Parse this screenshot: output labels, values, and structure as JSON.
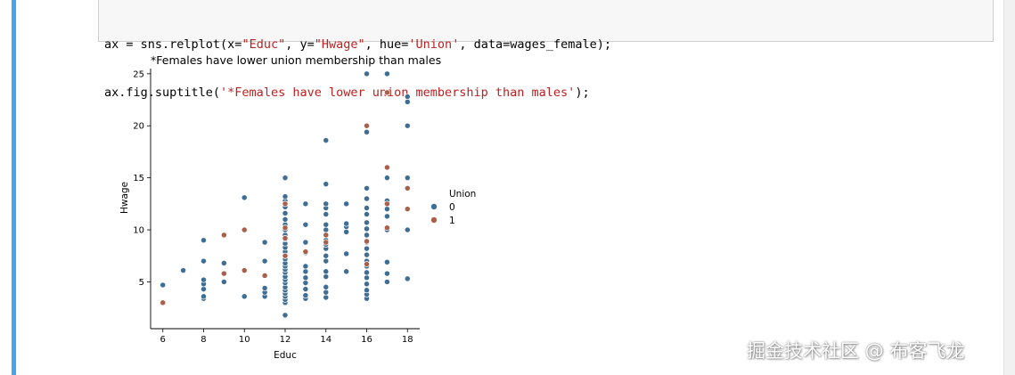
{
  "code_cell": {
    "line1": {
      "a": "ax = sns.relplot(x=",
      "b": "\"Educ\"",
      "c": ", y=",
      "d": "\"Hwage\"",
      "e": ", hue=",
      "f": "'Union'",
      "g": ", data=wages_female);"
    },
    "line2": {
      "a": "ax.fig.suptitle(",
      "b": "'*Females have lower union membership than males'",
      "c": ");"
    }
  },
  "colors": {
    "union_0": "#3f6e94",
    "union_1": "#a9604a",
    "cell_marker": "#42a5f5"
  },
  "watermark": "掘金技术社区 @ 布客飞龙",
  "chart_data": {
    "type": "scatter",
    "title": "*Females have lower union membership than males",
    "xlabel": "Educ",
    "ylabel": "Hwage",
    "xlim": [
      5.4,
      18.6
    ],
    "ylim": [
      0.5,
      25.5
    ],
    "xticks": [
      6,
      8,
      10,
      12,
      14,
      16,
      18
    ],
    "yticks": [
      5,
      10,
      15,
      20,
      25
    ],
    "grid": false,
    "legend": {
      "title": "Union",
      "placement": "center-right outside",
      "entries": [
        "0",
        "1"
      ]
    },
    "series": [
      {
        "name": "0",
        "points": [
          [
            6,
            4.7
          ],
          [
            7,
            6.1
          ],
          [
            8,
            3.4
          ],
          [
            8,
            3.6
          ],
          [
            8,
            4.3
          ],
          [
            8,
            4.8
          ],
          [
            8,
            5.2
          ],
          [
            8,
            7
          ],
          [
            8,
            9
          ],
          [
            9,
            5
          ],
          [
            9,
            5.8
          ],
          [
            9,
            6.8
          ],
          [
            10,
            3.6
          ],
          [
            10,
            6.1
          ],
          [
            10,
            13.1
          ],
          [
            11,
            3.6
          ],
          [
            11,
            4
          ],
          [
            11,
            4.4
          ],
          [
            11,
            7
          ],
          [
            11,
            8.8
          ],
          [
            12,
            1.8
          ],
          [
            12,
            3
          ],
          [
            12,
            3.3
          ],
          [
            12,
            3.6
          ],
          [
            12,
            3.9
          ],
          [
            12,
            4.2
          ],
          [
            12,
            4.5
          ],
          [
            12,
            4.9
          ],
          [
            12,
            5.2
          ],
          [
            12,
            5.5
          ],
          [
            12,
            5.9
          ],
          [
            12,
            6.2
          ],
          [
            12,
            6.5
          ],
          [
            12,
            6.8
          ],
          [
            12,
            7.2
          ],
          [
            12,
            7.5
          ],
          [
            12,
            7.9
          ],
          [
            12,
            8.3
          ],
          [
            12,
            8.7
          ],
          [
            12,
            9.1
          ],
          [
            12,
            9.5
          ],
          [
            12,
            10
          ],
          [
            12,
            10.5
          ],
          [
            12,
            11
          ],
          [
            12,
            11.6
          ],
          [
            12,
            12.2
          ],
          [
            12,
            12.8
          ],
          [
            12,
            13.2
          ],
          [
            12,
            15
          ],
          [
            13,
            3.4
          ],
          [
            13,
            3.7
          ],
          [
            13,
            4.3
          ],
          [
            13,
            4.9
          ],
          [
            13,
            5.4
          ],
          [
            13,
            6
          ],
          [
            13,
            6.5
          ],
          [
            13,
            7.8
          ],
          [
            13,
            8.8
          ],
          [
            13,
            10.5
          ],
          [
            13,
            12.5
          ],
          [
            14,
            3.5
          ],
          [
            14,
            4
          ],
          [
            14,
            4.5
          ],
          [
            14,
            5.5
          ],
          [
            14,
            6
          ],
          [
            14,
            7
          ],
          [
            14,
            7.5
          ],
          [
            14,
            8.2
          ],
          [
            14,
            8.6
          ],
          [
            14,
            9
          ],
          [
            14,
            10
          ],
          [
            14,
            10.5
          ],
          [
            14,
            11.5
          ],
          [
            14,
            12.1
          ],
          [
            14,
            12.5
          ],
          [
            14,
            14.4
          ],
          [
            14,
            18.6
          ],
          [
            15,
            6
          ],
          [
            15,
            7.7
          ],
          [
            15,
            9.8
          ],
          [
            15,
            10.3
          ],
          [
            15,
            10.6
          ],
          [
            15,
            12.5
          ],
          [
            16,
            3.4
          ],
          [
            16,
            3.8
          ],
          [
            16,
            4.2
          ],
          [
            16,
            4.8
          ],
          [
            16,
            5.4
          ],
          [
            16,
            5.9
          ],
          [
            16,
            6.5
          ],
          [
            16,
            7
          ],
          [
            16,
            7.6
          ],
          [
            16,
            8.2
          ],
          [
            16,
            8.8
          ],
          [
            16,
            9.5
          ],
          [
            16,
            10.1
          ],
          [
            16,
            10.7
          ],
          [
            16,
            11.5
          ],
          [
            16,
            12.1
          ],
          [
            16,
            13
          ],
          [
            16,
            14
          ],
          [
            16,
            19.4
          ],
          [
            16,
            25
          ],
          [
            17,
            5
          ],
          [
            17,
            5.8
          ],
          [
            17,
            6.9
          ],
          [
            17,
            10
          ],
          [
            17,
            11.3
          ],
          [
            17,
            12
          ],
          [
            17,
            12.8
          ],
          [
            17,
            15
          ],
          [
            17,
            25
          ],
          [
            18,
            5.3
          ],
          [
            18,
            10
          ],
          [
            18,
            15
          ],
          [
            18,
            20
          ],
          [
            18,
            22.3
          ],
          [
            18,
            22.8
          ]
        ]
      },
      {
        "name": "1",
        "points": [
          [
            6,
            3
          ],
          [
            9,
            5.8
          ],
          [
            9,
            9.5
          ],
          [
            10,
            6.1
          ],
          [
            10,
            10
          ],
          [
            11,
            5.6
          ],
          [
            12,
            7.5
          ],
          [
            12,
            9.2
          ],
          [
            12,
            10.2
          ],
          [
            12,
            12.5
          ],
          [
            13,
            7.9
          ],
          [
            14,
            8.8
          ],
          [
            14,
            9.5
          ],
          [
            16,
            6.7
          ],
          [
            16,
            8.9
          ],
          [
            16,
            20
          ],
          [
            17,
            10.2
          ],
          [
            17,
            12.5
          ],
          [
            17,
            16
          ],
          [
            17,
            23.2
          ],
          [
            18,
            12
          ],
          [
            18,
            14
          ]
        ]
      }
    ]
  }
}
